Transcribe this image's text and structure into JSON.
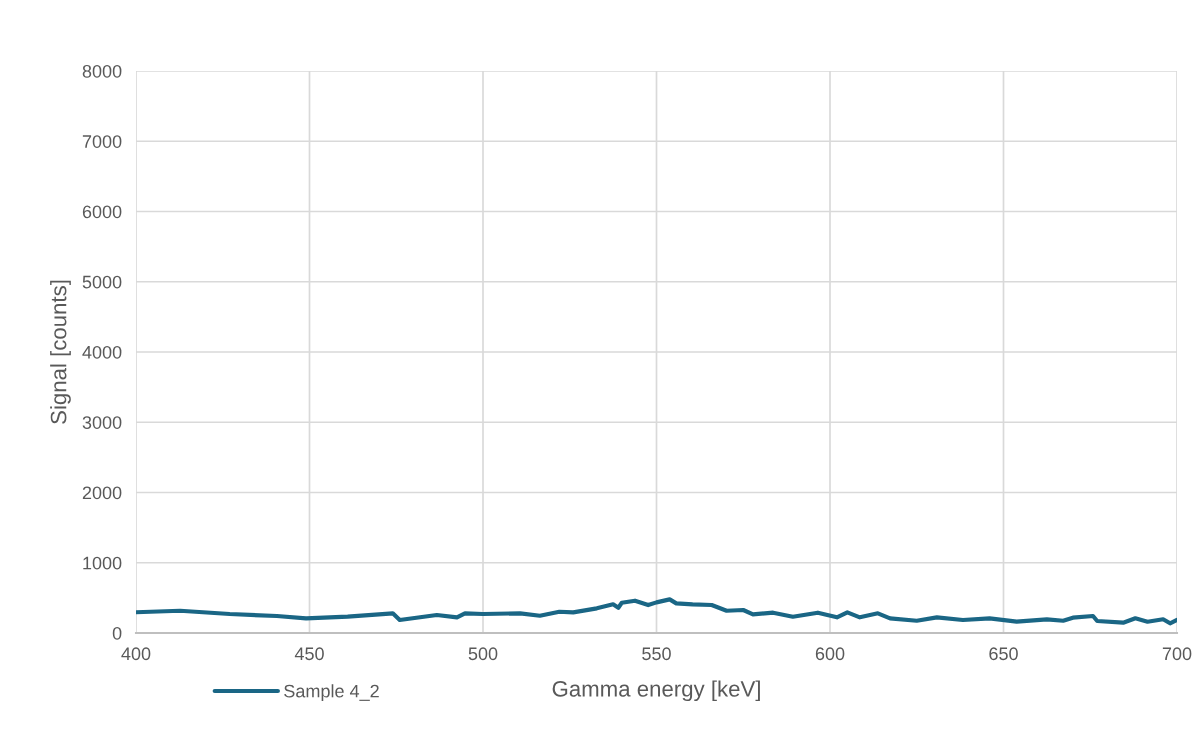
{
  "chart_data": {
    "type": "line",
    "xlabel": "Gamma energy [keV]",
    "ylabel": "Signal [counts]",
    "xlim": [
      400,
      700
    ],
    "xticks": [
      400,
      450,
      500,
      550,
      600,
      650,
      700
    ],
    "ylim": [
      0,
      8000
    ],
    "yticks": [
      0,
      1000,
      2000,
      3000,
      4000,
      5000,
      6000,
      7000,
      8000
    ],
    "grid": true,
    "legend": "bottom left",
    "marker": "none",
    "line_style": "solid",
    "series": [
      {
        "name": "Sample 4_2",
        "color": "#1a6685",
        "x": [
          400,
          412.7,
          427,
          440.6,
          449,
          461,
          474,
          476,
          486.7,
          492.5,
          494.8,
          500,
          510.7,
          516.4,
          522,
          526,
          532.8,
          537.5,
          539,
          540,
          543.8,
          547.6,
          550,
          553.8,
          555.7,
          560.4,
          565.9,
          570.2,
          575,
          577.8,
          583.6,
          589.3,
          596.5,
          602,
          605,
          608.6,
          613.8,
          617.3,
          625,
          630.8,
          638.3,
          646,
          653.8,
          662.5,
          667.2,
          670,
          675.8,
          677,
          684.5,
          688,
          691.5,
          696,
          698,
          700
        ],
        "values": [
          295,
          317,
          270,
          242,
          209,
          232,
          280,
          185,
          256,
          223,
          280,
          270,
          280,
          246,
          303,
          294,
          351,
          408,
          360,
          431,
          460,
          398,
          436,
          479,
          422,
          408,
          398,
          317,
          327,
          266,
          289,
          232,
          289,
          223,
          294,
          223,
          280,
          209,
          175,
          223,
          185,
          209,
          161,
          195,
          175,
          218,
          242,
          171,
          147,
          209,
          161,
          195,
          138,
          185
        ]
      }
    ]
  }
}
